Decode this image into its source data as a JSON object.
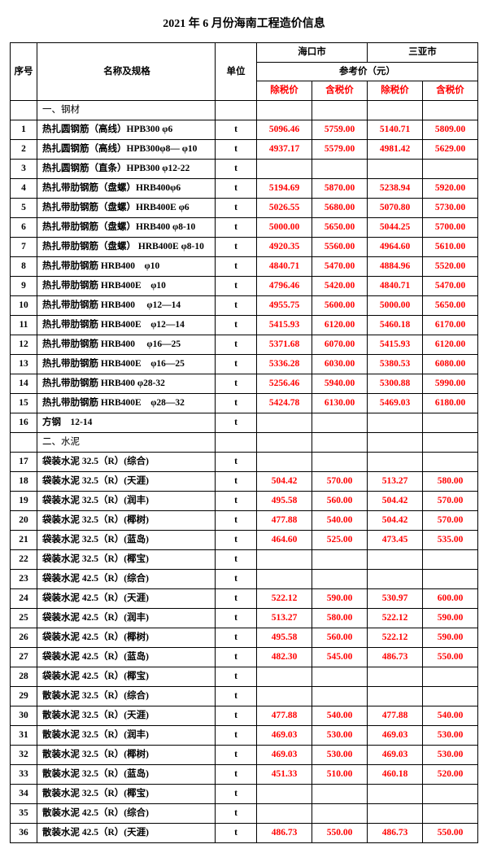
{
  "title": "2021 年 6 月份海南工程造价信息",
  "header": {
    "seq": "序号",
    "name": "名称及规格",
    "unit": "单位",
    "city1": "海口市",
    "city2": "三亚市",
    "refprice": "参考价（元）",
    "no_tax": "除税价",
    "with_tax": "含税价"
  },
  "colors": {
    "text": "#000000",
    "accent": "#ff0000",
    "border": "#000000",
    "background": "#ffffff"
  },
  "rows": [
    {
      "type": "section",
      "name": "一、钢材"
    },
    {
      "seq": "1",
      "name": "热扎圆钢筋（高线）HPB300 φ6",
      "unit": "t",
      "v": [
        "5096.46",
        "5759.00",
        "5140.71",
        "5809.00"
      ]
    },
    {
      "seq": "2",
      "name": "热扎圆钢筋（高线）HPB300φ8— φ10",
      "unit": "t",
      "v": [
        "4937.17",
        "5579.00",
        "4981.42",
        "5629.00"
      ]
    },
    {
      "seq": "3",
      "name": "热扎圆钢筋（直条）HPB300 φ12-22",
      "unit": "t",
      "v": [
        "",
        "",
        "",
        ""
      ]
    },
    {
      "seq": "4",
      "name": "热扎带肋钢筋（盘螺）HRB400φ6",
      "unit": "t",
      "v": [
        "5194.69",
        "5870.00",
        "5238.94",
        "5920.00"
      ]
    },
    {
      "seq": "5",
      "name": "热扎带肋钢筋（盘螺）HRB400E φ6",
      "unit": "t",
      "v": [
        "5026.55",
        "5680.00",
        "5070.80",
        "5730.00"
      ]
    },
    {
      "seq": "6",
      "name": "热扎带肋钢筋（盘螺）HRB400 φ8-10",
      "unit": "t",
      "v": [
        "5000.00",
        "5650.00",
        "5044.25",
        "5700.00"
      ]
    },
    {
      "seq": "7",
      "name": "热扎带肋钢筋（盘螺） HRB400E φ8-10",
      "unit": "t",
      "v": [
        "4920.35",
        "5560.00",
        "4964.60",
        "5610.00"
      ]
    },
    {
      "seq": "8",
      "name": "热扎带肋钢筋  HRB400　φ10",
      "unit": "t",
      "v": [
        "4840.71",
        "5470.00",
        "4884.96",
        "5520.00"
      ]
    },
    {
      "seq": "9",
      "name": "热扎带肋钢筋  HRB400E　φ10",
      "unit": "t",
      "v": [
        "4796.46",
        "5420.00",
        "4840.71",
        "5470.00"
      ]
    },
    {
      "seq": "10",
      "name": "热扎带肋钢筋  HRB400　 φ12—14",
      "unit": "t",
      "v": [
        "4955.75",
        "5600.00",
        "5000.00",
        "5650.00"
      ]
    },
    {
      "seq": "11",
      "name": "热扎带肋钢筋  HRB400E　φ12—14",
      "unit": "t",
      "v": [
        "5415.93",
        "6120.00",
        "5460.18",
        "6170.00"
      ]
    },
    {
      "seq": "12",
      "name": "热扎带肋钢筋  HRB400　 φ16—25",
      "unit": "t",
      "v": [
        "5371.68",
        "6070.00",
        "5415.93",
        "6120.00"
      ]
    },
    {
      "seq": "13",
      "name": "热扎带肋钢筋  HRB400E　φ16—25",
      "unit": "t",
      "v": [
        "5336.28",
        "6030.00",
        "5380.53",
        "6080.00"
      ]
    },
    {
      "seq": "14",
      "name": "热扎带肋钢筋  HRB400  φ28-32",
      "unit": "t",
      "v": [
        "5256.46",
        "5940.00",
        "5300.88",
        "5990.00"
      ]
    },
    {
      "seq": "15",
      "name": "热扎带肋钢筋  HRB400E　φ28—32",
      "unit": "t",
      "v": [
        "5424.78",
        "6130.00",
        "5469.03",
        "6180.00"
      ]
    },
    {
      "seq": "16",
      "name": "方钢　12-14",
      "unit": "t",
      "v": [
        "",
        "",
        "",
        ""
      ]
    },
    {
      "type": "section",
      "name": "二、水泥"
    },
    {
      "seq": "17",
      "name": "袋装水泥 32.5（R）(综合)",
      "unit": "t",
      "v": [
        "",
        "",
        "",
        ""
      ]
    },
    {
      "seq": "18",
      "name": "袋装水泥 32.5（R）(天涯)",
      "unit": "t",
      "v": [
        "504.42",
        "570.00",
        "513.27",
        "580.00"
      ]
    },
    {
      "seq": "19",
      "name": "袋装水泥 32.5（R）(润丰)",
      "unit": "t",
      "v": [
        "495.58",
        "560.00",
        "504.42",
        "570.00"
      ]
    },
    {
      "seq": "20",
      "name": "袋装水泥 32.5（R）(椰树)",
      "unit": "t",
      "v": [
        "477.88",
        "540.00",
        "504.42",
        "570.00"
      ]
    },
    {
      "seq": "21",
      "name": "袋装水泥 32.5（R）(蓝岛)",
      "unit": "t",
      "v": [
        "464.60",
        "525.00",
        "473.45",
        "535.00"
      ]
    },
    {
      "seq": "22",
      "name": "袋装水泥 32.5（R）(椰宝)",
      "unit": "t",
      "v": [
        "",
        "",
        "",
        ""
      ]
    },
    {
      "seq": "23",
      "name": "袋装水泥 42.5（R）(综合)",
      "unit": "t",
      "v": [
        "",
        "",
        "",
        ""
      ]
    },
    {
      "seq": "24",
      "name": "袋装水泥 42.5（R）(天涯)",
      "unit": "t",
      "v": [
        "522.12",
        "590.00",
        "530.97",
        "600.00"
      ]
    },
    {
      "seq": "25",
      "name": "袋装水泥 42.5（R）(润丰)",
      "unit": "t",
      "v": [
        "513.27",
        "580.00",
        "522.12",
        "590.00"
      ]
    },
    {
      "seq": "26",
      "name": "袋装水泥 42.5（R）(椰树)",
      "unit": "t",
      "v": [
        "495.58",
        "560.00",
        "522.12",
        "590.00"
      ]
    },
    {
      "seq": "27",
      "name": "袋装水泥 42.5（R）(蓝岛)",
      "unit": "t",
      "v": [
        "482.30",
        "545.00",
        "486.73",
        "550.00"
      ]
    },
    {
      "seq": "28",
      "name": "袋装水泥 42.5（R）(椰宝)",
      "unit": "t",
      "v": [
        "",
        "",
        "",
        ""
      ]
    },
    {
      "seq": "29",
      "name": "散装水泥 32.5（R）(综合)",
      "unit": "t",
      "v": [
        "",
        "",
        "",
        ""
      ]
    },
    {
      "seq": "30",
      "name": "散装水泥 32.5（R）(天涯)",
      "unit": "t",
      "v": [
        "477.88",
        "540.00",
        "477.88",
        "540.00"
      ]
    },
    {
      "seq": "31",
      "name": "散装水泥 32.5（R）(润丰)",
      "unit": "t",
      "v": [
        "469.03",
        "530.00",
        "469.03",
        "530.00"
      ]
    },
    {
      "seq": "32",
      "name": "散装水泥 32.5（R）(椰树)",
      "unit": "t",
      "v": [
        "469.03",
        "530.00",
        "469.03",
        "530.00"
      ]
    },
    {
      "seq": "33",
      "name": "散装水泥 32.5（R）(蓝岛)",
      "unit": "t",
      "v": [
        "451.33",
        "510.00",
        "460.18",
        "520.00"
      ]
    },
    {
      "seq": "34",
      "name": "散装水泥 32.5（R）(椰宝)",
      "unit": "t",
      "v": [
        "",
        "",
        "",
        ""
      ]
    },
    {
      "seq": "35",
      "name": "散装水泥 42.5（R）(综合)",
      "unit": "t",
      "v": [
        "",
        "",
        "",
        ""
      ]
    },
    {
      "seq": "36",
      "name": "散装水泥 42.5（R）(天涯)",
      "unit": "t",
      "v": [
        "486.73",
        "550.00",
        "486.73",
        "550.00"
      ]
    }
  ]
}
